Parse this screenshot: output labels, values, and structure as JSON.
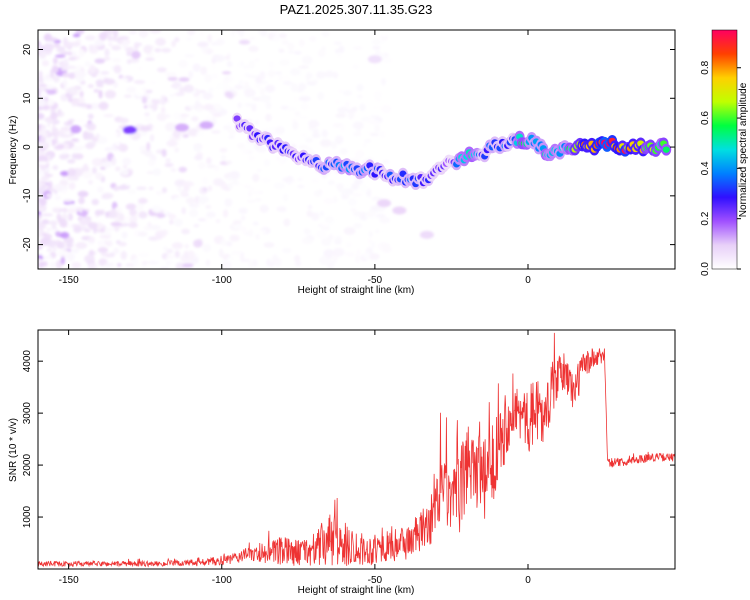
{
  "page_title": "PAZ1.2025.307.11.35.G23",
  "chart_data": [
    {
      "type": "heatmap",
      "title": "PAZ1.2025.307.11.35.G23",
      "xlabel": "Height of straight line (km)",
      "ylabel": "Frequency (Hz)",
      "xlim": [
        -160,
        48
      ],
      "ylim": [
        -25,
        24
      ],
      "xticks": [
        -150,
        -100,
        -50,
        0
      ],
      "yticks": [
        -20,
        -10,
        0,
        10,
        20
      ],
      "colorbar": {
        "label": "Normalized spectral amplitude",
        "range": [
          0,
          0.95
        ],
        "ticks": [
          0.0,
          0.2,
          0.4,
          0.6,
          0.8
        ],
        "colors": [
          "#ffffff",
          "#e8d0f8",
          "#a050ff",
          "#3010ff",
          "#0080ff",
          "#00e0e0",
          "#00ff40",
          "#c0ff00",
          "#ffd000",
          "#ff4000",
          "#ff0060"
        ]
      },
      "ridge": [
        {
          "x": -95,
          "f": 5.0,
          "a": 0.2
        },
        {
          "x": -90,
          "f": 3.0,
          "a": 0.25
        },
        {
          "x": -85,
          "f": 1.5,
          "a": 0.28
        },
        {
          "x": -80,
          "f": -0.5,
          "a": 0.27
        },
        {
          "x": -75,
          "f": -2.0,
          "a": 0.25
        },
        {
          "x": -70,
          "f": -3.0,
          "a": 0.3
        },
        {
          "x": -65,
          "f": -4.0,
          "a": 0.32
        },
        {
          "x": -60,
          "f": -4.0,
          "a": 0.38
        },
        {
          "x": -55,
          "f": -4.5,
          "a": 0.36
        },
        {
          "x": -50,
          "f": -5.0,
          "a": 0.32
        },
        {
          "x": -45,
          "f": -6.0,
          "a": 0.3
        },
        {
          "x": -40,
          "f": -6.5,
          "a": 0.34
        },
        {
          "x": -35,
          "f": -6.5,
          "a": 0.3
        },
        {
          "x": -30,
          "f": -5.0,
          "a": 0.25
        },
        {
          "x": -25,
          "f": -3.0,
          "a": 0.2
        },
        {
          "x": -20,
          "f": -2.0,
          "a": 0.55
        },
        {
          "x": -15,
          "f": -1.0,
          "a": 0.3
        },
        {
          "x": -10,
          "f": 0.5,
          "a": 0.35
        },
        {
          "x": -5,
          "f": 1.0,
          "a": 0.3
        },
        {
          "x": -2,
          "f": 1.0,
          "a": 0.55
        },
        {
          "x": 2,
          "f": 1.5,
          "a": 0.35
        },
        {
          "x": 5,
          "f": -1.0,
          "a": 0.45
        },
        {
          "x": 8,
          "f": -1.5,
          "a": 0.5
        },
        {
          "x": 12,
          "f": 0.0,
          "a": 0.4
        },
        {
          "x": 17,
          "f": 0.0,
          "a": 0.7
        },
        {
          "x": 20,
          "f": 0.0,
          "a": 0.8
        },
        {
          "x": 25,
          "f": 0.0,
          "a": 0.9
        },
        {
          "x": 30,
          "f": 0.0,
          "a": 0.85
        },
        {
          "x": 36,
          "f": 0.0,
          "a": 0.7
        },
        {
          "x": 40,
          "f": 0.0,
          "a": 0.65
        },
        {
          "x": 46,
          "f": 0.0,
          "a": 0.5
        }
      ],
      "blobs": [
        {
          "x": -130,
          "f": 3.5,
          "a": 0.22
        },
        {
          "x": -113,
          "f": 4.0,
          "a": 0.12
        },
        {
          "x": -105,
          "f": 4.5,
          "a": 0.12
        },
        {
          "x": -47,
          "f": -11.5,
          "a": 0.08
        },
        {
          "x": -42,
          "f": -13.0,
          "a": 0.08
        },
        {
          "x": -33,
          "f": -18.0,
          "a": 0.07
        },
        {
          "x": -50,
          "f": 18.0,
          "a": 0.06
        }
      ]
    },
    {
      "type": "line",
      "xlabel": "Height of straight line (km)",
      "ylabel": "SNR (10 * v/v)",
      "xlim": [
        -160,
        48
      ],
      "ylim": [
        0,
        4600
      ],
      "xticks": [
        -150,
        -100,
        -50,
        0
      ],
      "yticks": [
        1000,
        2000,
        3000,
        4000
      ],
      "line_color": "#ee3333",
      "envelope": {
        "x": [
          -160,
          -140,
          -120,
          -105,
          -97,
          -92,
          -85,
          -80,
          -75,
          -70,
          -65,
          -60,
          -57,
          -53,
          -45,
          -40,
          -35,
          -31,
          -28,
          -25,
          -22,
          -20,
          -18,
          -15,
          -12,
          -10,
          -7,
          -5,
          -3,
          0,
          3,
          5,
          8,
          10,
          12,
          15,
          18,
          20,
          22,
          25,
          26,
          27,
          30,
          35,
          40,
          48
        ],
        "base": [
          100,
          100,
          100,
          130,
          180,
          280,
          300,
          330,
          320,
          350,
          550,
          450,
          450,
          350,
          450,
          500,
          700,
          1000,
          1600,
          1200,
          1500,
          2000,
          2200,
          1600,
          1900,
          2500,
          2800,
          3200,
          3000,
          2800,
          3200,
          2800,
          3500,
          3700,
          3800,
          3400,
          3900,
          4000,
          4050,
          4100,
          2100,
          2050,
          2050,
          2100,
          2150,
          2150
        ],
        "spread": [
          50,
          50,
          50,
          80,
          100,
          130,
          200,
          300,
          250,
          300,
          550,
          450,
          350,
          300,
          300,
          350,
          400,
          500,
          700,
          600,
          800,
          900,
          900,
          800,
          900,
          800,
          700,
          600,
          500,
          600,
          700,
          500,
          500,
          400,
          400,
          400,
          300,
          250,
          200,
          150,
          100,
          100,
          80,
          80,
          80,
          80
        ]
      },
      "samples": 1400
    }
  ]
}
